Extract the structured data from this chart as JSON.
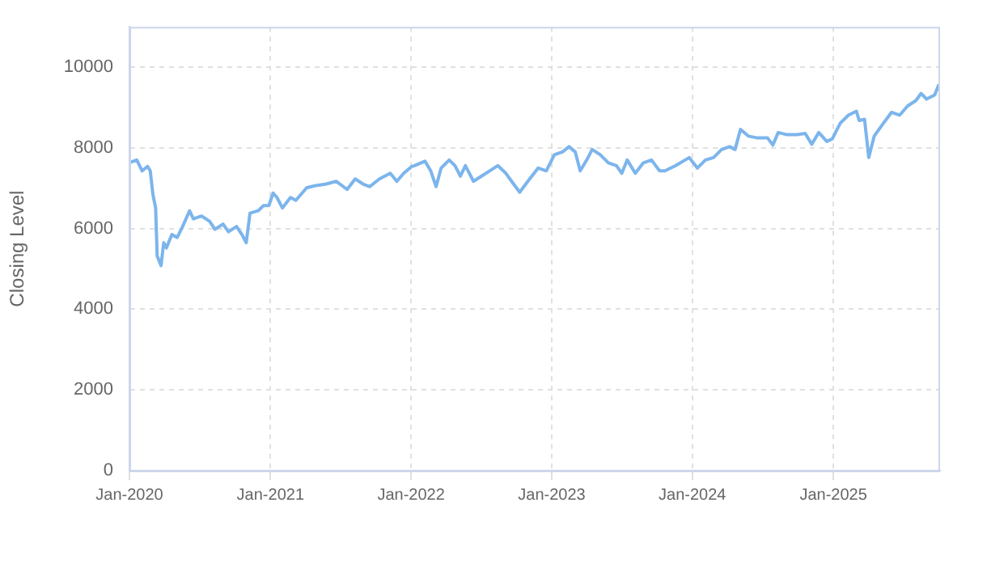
{
  "chart_data": {
    "type": "line",
    "ylabel": "Closing Level",
    "color": "#7cb5ec",
    "marker": "none",
    "line_style": "solid",
    "grid": true,
    "xlim": [
      "2020-01-01",
      "2025-10-05"
    ],
    "ylim": [
      0,
      11000
    ],
    "yticks": [
      0,
      2000,
      4000,
      6000,
      8000,
      10000
    ],
    "xticks": [
      {
        "value": "2020-01-01",
        "label": "Jan-2020"
      },
      {
        "value": "2021-01-01",
        "label": "Jan-2021"
      },
      {
        "value": "2022-01-01",
        "label": "Jan-2022"
      },
      {
        "value": "2023-01-01",
        "label": "Jan-2023"
      },
      {
        "value": "2024-01-01",
        "label": "Jan-2024"
      },
      {
        "value": "2025-01-01",
        "label": "Jan-2025"
      }
    ],
    "x": [
      "2020-01-03",
      "2020-01-20",
      "2020-02-03",
      "2020-02-17",
      "2020-02-24",
      "2020-03-02",
      "2020-03-09",
      "2020-03-13",
      "2020-03-23",
      "2020-03-30",
      "2020-04-06",
      "2020-04-20",
      "2020-05-04",
      "2020-05-18",
      "2020-06-05",
      "2020-06-15",
      "2020-07-06",
      "2020-07-27",
      "2020-08-10",
      "2020-08-31",
      "2020-09-14",
      "2020-10-05",
      "2020-10-19",
      "2020-10-30",
      "2020-11-09",
      "2020-11-30",
      "2020-12-14",
      "2020-12-28",
      "2021-01-08",
      "2021-01-18",
      "2021-02-01",
      "2021-02-22",
      "2021-03-08",
      "2021-04-05",
      "2021-04-26",
      "2021-05-24",
      "2021-06-21",
      "2021-07-19",
      "2021-08-09",
      "2021-08-30",
      "2021-09-16",
      "2021-10-11",
      "2021-11-08",
      "2021-11-25",
      "2021-12-13",
      "2022-01-03",
      "2022-01-10",
      "2022-02-06",
      "2022-02-21",
      "2022-03-07",
      "2022-03-20",
      "2022-04-10",
      "2022-04-25",
      "2022-05-09",
      "2022-05-22",
      "2022-06-12",
      "2022-07-03",
      "2022-07-24",
      "2022-08-14",
      "2022-09-04",
      "2022-09-19",
      "2022-10-10",
      "2022-10-31",
      "2022-11-27",
      "2022-12-18",
      "2023-01-08",
      "2023-01-29",
      "2023-02-15",
      "2023-03-03",
      "2023-03-16",
      "2023-04-02",
      "2023-04-16",
      "2023-05-07",
      "2023-05-28",
      "2023-06-18",
      "2023-07-02",
      "2023-07-16",
      "2023-08-06",
      "2023-08-27",
      "2023-09-17",
      "2023-10-08",
      "2023-10-22",
      "2023-11-19",
      "2023-12-17",
      "2023-12-24",
      "2024-01-14",
      "2024-02-04",
      "2024-02-25",
      "2024-03-17",
      "2024-04-07",
      "2024-04-21",
      "2024-05-05",
      "2024-05-26",
      "2024-06-16",
      "2024-07-14",
      "2024-07-28",
      "2024-08-11",
      "2024-09-01",
      "2024-09-29",
      "2024-10-20",
      "2024-11-06",
      "2024-11-24",
      "2024-12-15",
      "2024-12-29",
      "2025-01-19",
      "2025-02-09",
      "2025-03-02",
      "2025-03-09",
      "2025-03-23",
      "2025-04-03",
      "2025-04-17",
      "2025-05-11",
      "2025-06-01",
      "2025-06-22",
      "2025-07-13",
      "2025-08-03",
      "2025-08-17",
      "2025-08-31",
      "2025-09-21",
      "2025-10-02"
    ],
    "values": [
      7640,
      7700,
      7430,
      7540,
      7430,
      6840,
      6510,
      5320,
      5080,
      5650,
      5520,
      5850,
      5780,
      6050,
      6440,
      6240,
      6310,
      6180,
      5980,
      6110,
      5920,
      6050,
      5850,
      5650,
      6380,
      6440,
      6570,
      6570,
      6880,
      6770,
      6510,
      6770,
      6700,
      7010,
      7060,
      7100,
      7170,
      6970,
      7230,
      7100,
      7040,
      7230,
      7370,
      7170,
      7370,
      7540,
      7560,
      7670,
      7430,
      7040,
      7500,
      7700,
      7560,
      7300,
      7560,
      7170,
      7300,
      7430,
      7560,
      7370,
      7170,
      6900,
      7170,
      7500,
      7430,
      7830,
      7900,
      8030,
      7900,
      7430,
      7700,
      7960,
      7830,
      7630,
      7560,
      7370,
      7700,
      7370,
      7630,
      7700,
      7430,
      7430,
      7560,
      7720,
      7760,
      7500,
      7700,
      7760,
      7960,
      8030,
      7960,
      8460,
      8290,
      8250,
      8250,
      8070,
      8380,
      8330,
      8330,
      8360,
      8090,
      8380,
      8160,
      8220,
      8610,
      8810,
      8910,
      8680,
      8710,
      7760,
      8290,
      8610,
      8880,
      8810,
      9040,
      9170,
      9350,
      9210,
      9310,
      9570
    ]
  }
}
